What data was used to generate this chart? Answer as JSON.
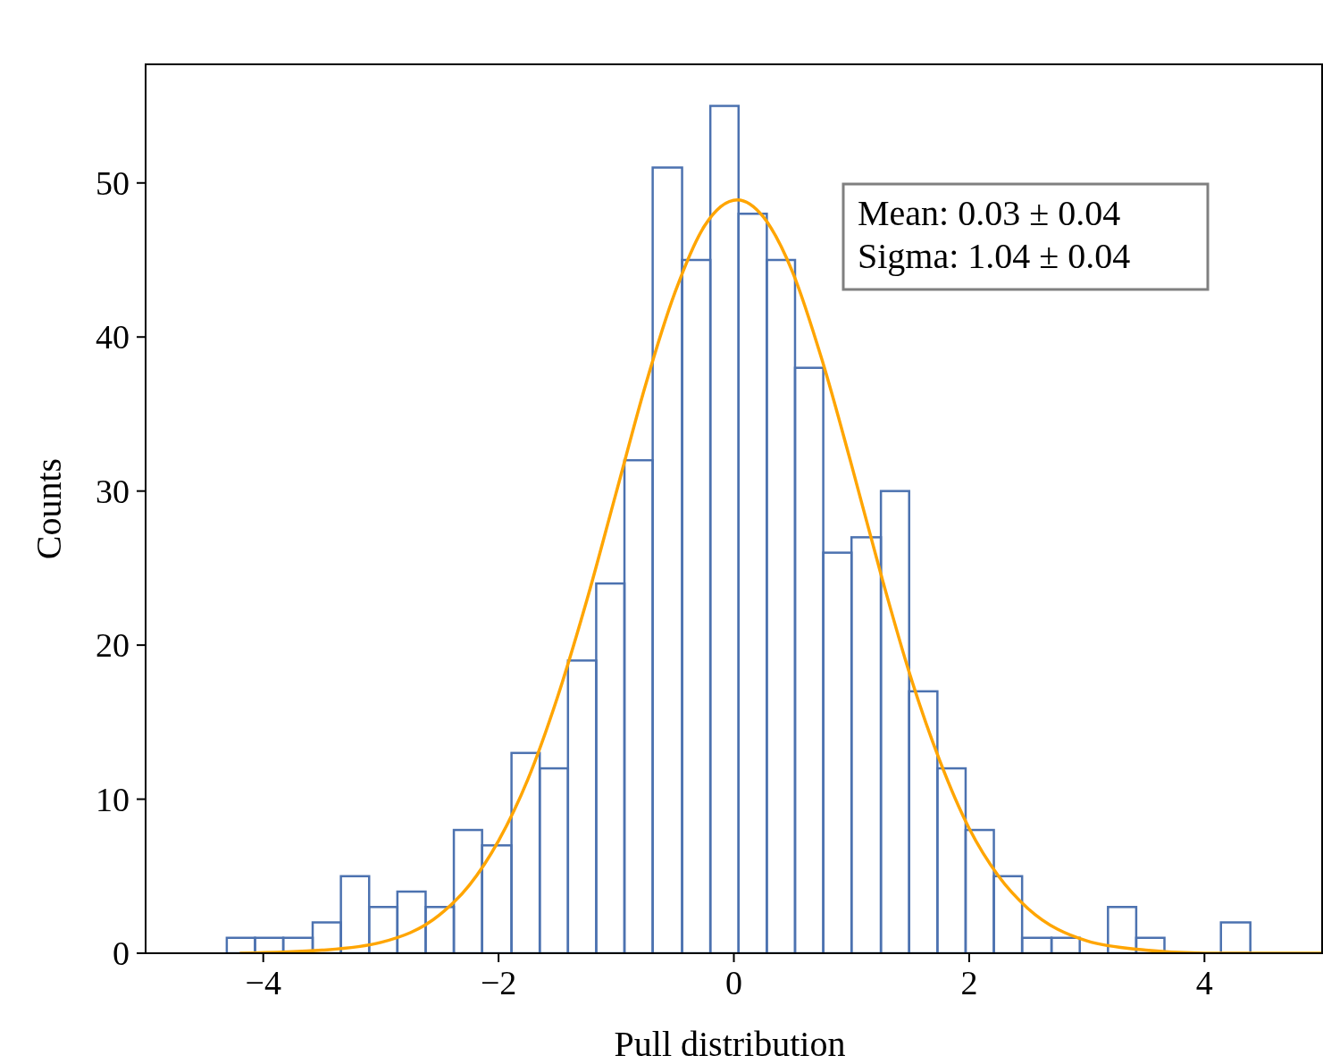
{
  "chart_data": {
    "type": "histogram",
    "xlabel": "Pull distribution",
    "ylabel": "Counts",
    "xlim": [
      -5,
      5
    ],
    "ylim": [
      0,
      57.7
    ],
    "xticks": [
      {
        "value": -4,
        "label": "−4"
      },
      {
        "value": -2,
        "label": "−2"
      },
      0,
      2,
      4
    ],
    "yticks": [
      0,
      10,
      20,
      30,
      40,
      50
    ],
    "grid": false,
    "annotations": [
      "Mean: 0.03 ± 0.04",
      "Sigma: 1.04 ± 0.04"
    ],
    "series": [
      {
        "type": "histogram",
        "color": "#4c72b0",
        "bins": [
          -4.31,
          -4.07,
          -3.83,
          -3.58,
          -3.34,
          -3.1,
          -2.86,
          -2.62,
          -2.38,
          -2.14,
          -1.89,
          -1.65,
          -1.41,
          -1.17,
          -0.93,
          -0.69,
          -0.44,
          -0.2,
          0.04,
          0.28,
          0.52,
          0.76,
          1.0,
          1.25,
          1.49,
          1.73,
          1.97,
          2.21,
          2.45,
          2.7,
          2.94,
          3.18,
          3.42,
          3.66,
          4.14,
          4.39
        ],
        "values": [
          1,
          1,
          1,
          2,
          5,
          3,
          4,
          3,
          8,
          7,
          13,
          12,
          19,
          24,
          32,
          51,
          45,
          55,
          48,
          45,
          38,
          26,
          27,
          30,
          17,
          12,
          8,
          5,
          1,
          1,
          0,
          3,
          1,
          0,
          2
        ]
      },
      {
        "type": "line",
        "color": "#ffa500",
        "x": [
          -4.2,
          -3.5,
          -3.0,
          -2.5,
          -2.25,
          -2.0,
          -1.75,
          -1.5,
          -1.25,
          -1.0,
          -0.75,
          -0.5,
          -0.25,
          0.03,
          0.25,
          0.5,
          0.75,
          1.0,
          1.25,
          1.5,
          1.75,
          2.0,
          2.25,
          2.5,
          3.0,
          3.5,
          4.0,
          5.0
        ],
        "values": [
          0.0,
          0.2,
          0.7,
          2.5,
          4.4,
          7.3,
          11.3,
          16.6,
          22.9,
          29.9,
          36.9,
          42.9,
          47.2,
          48.9,
          47.8,
          44.2,
          38.5,
          31.7,
          24.6,
          18.0,
          12.5,
          8.1,
          5.0,
          2.9,
          0.8,
          0.2,
          0.0,
          0.0
        ]
      }
    ]
  }
}
